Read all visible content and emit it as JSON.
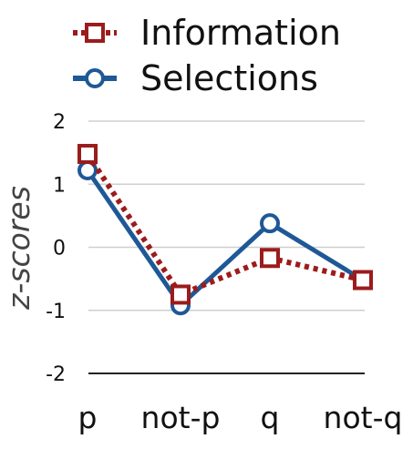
{
  "chart_data": {
    "type": "line",
    "categories": [
      "p",
      "not-p",
      "q",
      "not-q"
    ],
    "ylabel": "z-scores",
    "xlabel": "",
    "ylim": [
      -2,
      2
    ],
    "yticks": [
      "2",
      "1",
      "0",
      "-1",
      "-2"
    ],
    "grid": true,
    "legend_position": "top",
    "series": [
      {
        "name": "Information",
        "values": [
          1.48,
          -0.75,
          -0.17,
          -0.52
        ],
        "color": "#9b1c1c",
        "marker": "square",
        "line_style": "dotted"
      },
      {
        "name": "Selections",
        "values": [
          1.22,
          -0.92,
          0.38,
          -0.52
        ],
        "color": "#1f5896",
        "marker": "circle",
        "line_style": "solid"
      }
    ]
  }
}
